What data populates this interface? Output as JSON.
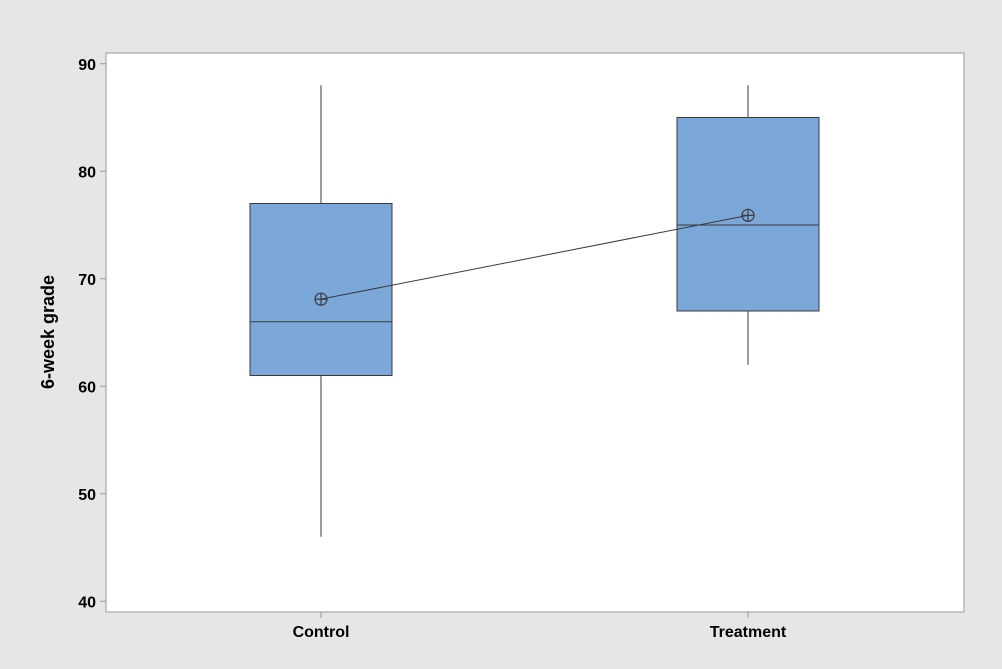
{
  "chart_data": {
    "type": "box",
    "title": "",
    "xlabel": "",
    "ylabel": "6-week grade",
    "ylim": [
      39,
      91
    ],
    "yticks": [
      40,
      50,
      60,
      70,
      80,
      90
    ],
    "categories": [
      "Control",
      "Treatment"
    ],
    "boxes": [
      {
        "category": "Control",
        "min": 46,
        "q1": 61,
        "median": 66,
        "q3": 77,
        "max": 88,
        "mean": 68.1
      },
      {
        "category": "Treatment",
        "min": 62,
        "q1": 67,
        "median": 75,
        "q3": 85,
        "max": 88,
        "mean": 75.9
      }
    ],
    "mean_connect_line": true,
    "grid": false,
    "legend": "none",
    "colors": {
      "box_fill": "#7ba7d9",
      "box_stroke": "#3a3a3a",
      "plot_bg": "#ffffff",
      "figure_bg": "#e6e6e6",
      "axis": "#9a9a9a"
    }
  }
}
